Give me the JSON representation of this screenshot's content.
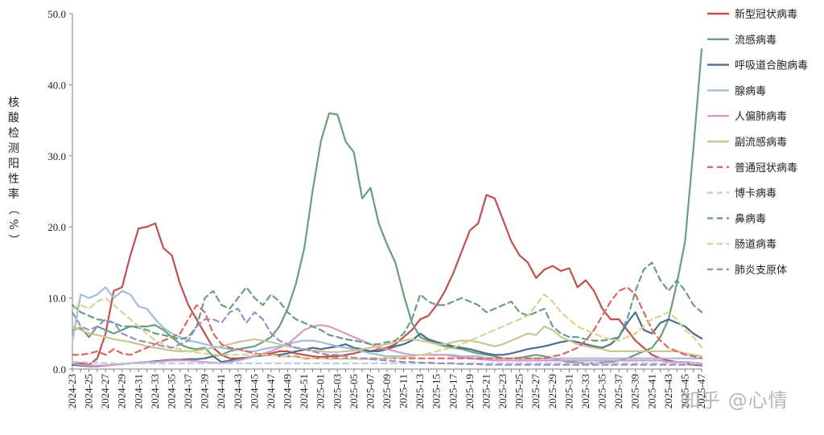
{
  "watermark": "知乎 @心情",
  "chart_data": {
    "type": "line",
    "ylabel": "核酸检测阳性率（%）",
    "ylim": [
      0,
      50
    ],
    "yticks": [
      "0.0",
      "10.0",
      "20.0",
      "30.0",
      "40.0",
      "50.0"
    ],
    "x": [
      "2024-23",
      "2024-24",
      "2024-25",
      "2024-26",
      "2024-27",
      "2024-28",
      "2024-29",
      "2024-30",
      "2024-31",
      "2024-32",
      "2024-33",
      "2024-34",
      "2024-35",
      "2024-36",
      "2024-37",
      "2024-38",
      "2024-39",
      "2024-40",
      "2024-41",
      "2024-42",
      "2024-43",
      "2024-44",
      "2024-45",
      "2024-46",
      "2024-47",
      "2024-48",
      "2024-49",
      "2024-50",
      "2024-51",
      "2024-52",
      "2025-01",
      "2025-02",
      "2025-03",
      "2025-04",
      "2025-05",
      "2025-06",
      "2025-07",
      "2025-08",
      "2025-09",
      "2025-10",
      "2025-11",
      "2025-12",
      "2025-13",
      "2025-14",
      "2025-15",
      "2025-16",
      "2025-17",
      "2025-18",
      "2025-19",
      "2025-20",
      "2025-21",
      "2025-22",
      "2025-23",
      "2025-24",
      "2025-25",
      "2025-26",
      "2025-27",
      "2025-28",
      "2025-29",
      "2025-30",
      "2025-31",
      "2025-32",
      "2025-33",
      "2025-34",
      "2025-35",
      "2025-36",
      "2025-37",
      "2025-38",
      "2025-39",
      "2025-40",
      "2025-41",
      "2025-42",
      "2025-43",
      "2025-44",
      "2025-45",
      "2025-46",
      "2025-47"
    ],
    "xtick_labels": [
      "2024-23",
      "2024-25",
      "2024-27",
      "2024-29",
      "2024-31",
      "2024-33",
      "2024-35",
      "2024-37",
      "2024-39",
      "2024-41",
      "2024-43",
      "2024-45",
      "2024-47",
      "2024-49",
      "2024-51",
      "2025-01",
      "2025-03",
      "2025-05",
      "2025-07",
      "2025-09",
      "2025-11",
      "2025-13",
      "2025-15",
      "2025-17",
      "2025-19",
      "2025-21",
      "2025-23",
      "2025-25",
      "2025-27",
      "2025-29",
      "2025-31",
      "2025-33",
      "2025-35",
      "2025-37",
      "2025-39",
      "2025-41",
      "2025-43",
      "2025-45",
      "2025-47"
    ],
    "legend_position": "right",
    "grid": false,
    "series": [
      {
        "name": "新型冠状病毒",
        "color": "#c0504d",
        "dashed": false,
        "values": [
          1.0,
          0.8,
          0.6,
          1.5,
          5.0,
          11.0,
          11.5,
          16.0,
          19.8,
          20.0,
          20.5,
          17.0,
          16.0,
          12.0,
          9.0,
          7.0,
          5.0,
          3.0,
          2.0,
          1.5,
          1.5,
          1.5,
          1.8,
          2.0,
          2.2,
          2.5,
          2.5,
          2.2,
          2.0,
          1.8,
          1.7,
          1.8,
          1.8,
          2.0,
          2.2,
          2.5,
          2.5,
          2.8,
          3.0,
          3.5,
          4.5,
          5.5,
          7.0,
          7.5,
          9.0,
          11.0,
          13.5,
          16.5,
          19.5,
          20.5,
          24.5,
          24.0,
          21.0,
          18.0,
          16.0,
          15.0,
          12.8,
          14.0,
          14.5,
          13.8,
          14.2,
          11.5,
          12.5,
          11.0,
          8.5,
          7.0,
          7.0,
          5.5,
          4.0,
          3.0,
          2.0,
          1.5,
          1.2,
          1.0,
          0.8,
          0.6,
          0.5
        ]
      },
      {
        "name": "流感病毒",
        "color": "#6b9e7e",
        "dashed": false,
        "values": [
          5.5,
          5.8,
          4.5,
          6.0,
          5.5,
          5.0,
          5.5,
          6.0,
          6.0,
          6.0,
          6.2,
          5.5,
          4.5,
          3.5,
          3.0,
          2.8,
          3.0,
          1.8,
          2.0,
          2.5,
          2.8,
          3.0,
          3.2,
          3.8,
          4.5,
          6.0,
          8.5,
          12.0,
          17.0,
          25.0,
          32.0,
          36.0,
          35.8,
          32.0,
          30.5,
          24.0,
          25.5,
          20.5,
          17.5,
          15.0,
          10.5,
          6.5,
          4.5,
          4.0,
          3.5,
          3.2,
          3.0,
          2.8,
          2.5,
          2.2,
          2.0,
          1.8,
          1.5,
          1.5,
          1.6,
          1.8,
          2.0,
          1.8,
          1.5,
          1.2,
          1.0,
          0.9,
          0.8,
          0.8,
          0.9,
          1.0,
          1.2,
          1.5,
          2.0,
          2.5,
          3.0,
          4.5,
          7.0,
          12.0,
          18.0,
          31.0,
          45.0
        ]
      },
      {
        "name": "呼吸道合胞病毒",
        "color": "#4f6d8a",
        "dashed": false,
        "values": [
          0.6,
          0.5,
          0.4,
          0.4,
          0.5,
          0.6,
          0.7,
          0.8,
          0.9,
          1.0,
          1.1,
          1.2,
          1.3,
          1.3,
          1.4,
          1.4,
          1.5,
          1.8,
          1.0,
          1.2,
          1.5,
          1.6,
          1.8,
          1.9,
          2.0,
          2.0,
          2.2,
          2.5,
          2.7,
          3.0,
          2.8,
          3.0,
          3.2,
          3.5,
          3.0,
          2.8,
          2.5,
          2.5,
          2.8,
          3.2,
          3.5,
          4.0,
          5.0,
          4.2,
          3.8,
          3.5,
          3.2,
          3.0,
          2.8,
          2.5,
          2.2,
          2.0,
          2.0,
          2.2,
          2.5,
          2.8,
          3.0,
          3.2,
          3.5,
          3.8,
          4.0,
          3.8,
          3.5,
          3.2,
          3.0,
          3.5,
          4.5,
          6.5,
          8.0,
          5.5,
          5.0,
          6.5,
          7.0,
          6.5,
          6.0,
          5.0,
          4.3
        ]
      },
      {
        "name": "腺病毒",
        "color": "#9cbfdc",
        "dashed": false,
        "values": [
          4.0,
          10.5,
          10.0,
          10.5,
          11.5,
          10.0,
          11.0,
          10.5,
          8.8,
          8.5,
          7.0,
          5.8,
          5.0,
          4.5,
          4.0,
          3.8,
          3.5,
          3.2,
          3.0,
          2.8,
          2.8,
          2.5,
          2.5,
          2.8,
          3.0,
          3.2,
          3.5,
          3.8,
          4.0,
          4.0,
          3.8,
          3.5,
          3.2,
          3.0,
          2.8,
          2.5,
          2.2,
          2.0,
          1.8,
          1.8,
          1.8,
          1.8,
          2.0,
          2.0,
          2.0,
          2.0,
          2.0,
          1.8,
          1.8,
          1.8,
          1.5,
          1.5,
          1.5,
          1.5,
          1.5,
          1.5,
          1.5,
          1.5,
          1.5,
          1.5,
          1.5,
          1.5,
          1.5,
          1.5,
          1.5,
          1.5,
          1.5,
          1.5,
          1.5,
          1.5,
          1.5,
          1.5,
          1.5,
          1.5,
          1.5,
          1.5,
          1.5
        ]
      },
      {
        "name": "人偏肺病毒",
        "color": "#dd99c6",
        "dashed": false,
        "values": [
          0.8,
          0.6,
          0.5,
          0.5,
          0.5,
          0.6,
          0.7,
          0.8,
          0.9,
          1.0,
          1.0,
          1.1,
          1.2,
          1.2,
          1.2,
          1.1,
          1.0,
          0.9,
          0.8,
          1.0,
          1.2,
          1.5,
          1.8,
          2.2,
          2.5,
          3.0,
          3.5,
          4.5,
          5.5,
          6.0,
          6.2,
          6.0,
          5.5,
          5.0,
          4.5,
          4.0,
          3.5,
          3.0,
          2.8,
          2.5,
          2.2,
          2.0,
          2.0,
          2.0,
          2.0,
          2.0,
          1.8,
          1.6,
          1.5,
          1.4,
          1.3,
          1.2,
          1.2,
          1.2,
          1.2,
          1.2,
          1.2,
          1.2,
          1.2,
          1.2,
          1.2,
          1.2,
          1.2,
          1.2,
          1.2,
          1.2,
          1.2,
          1.2,
          1.2,
          1.2,
          1.2,
          1.2,
          1.0,
          1.0,
          1.0,
          0.9,
          0.8
        ]
      },
      {
        "name": "副流感病毒",
        "color": "#c8c695",
        "dashed": false,
        "values": [
          6.0,
          5.5,
          5.0,
          4.8,
          4.5,
          4.2,
          4.0,
          3.8,
          3.5,
          3.2,
          3.0,
          2.8,
          2.6,
          2.5,
          2.5,
          2.6,
          2.8,
          3.0,
          3.2,
          3.5,
          3.8,
          4.0,
          4.2,
          4.0,
          3.8,
          3.5,
          3.2,
          3.0,
          2.8,
          2.6,
          2.5,
          2.4,
          2.4,
          2.5,
          2.6,
          2.8,
          3.0,
          3.2,
          3.5,
          3.8,
          4.0,
          4.2,
          4.0,
          3.8,
          3.5,
          3.5,
          3.8,
          4.0,
          4.0,
          3.8,
          3.5,
          3.2,
          3.5,
          4.0,
          4.5,
          5.0,
          4.8,
          6.0,
          5.5,
          4.5,
          4.0,
          3.5,
          3.2,
          3.0,
          2.8,
          2.5,
          2.5,
          2.5,
          2.5,
          2.5,
          2.5,
          2.5,
          2.5,
          2.5,
          2.2,
          2.0,
          1.8
        ]
      },
      {
        "name": "普通冠状病毒",
        "color": "#d9695f",
        "dashed": true,
        "values": [
          2.0,
          2.0,
          2.2,
          2.5,
          2.0,
          2.8,
          2.2,
          2.0,
          2.5,
          3.0,
          3.5,
          4.0,
          4.5,
          5.0,
          7.0,
          9.0,
          8.0,
          5.0,
          3.5,
          3.0,
          2.8,
          2.5,
          2.2,
          2.0,
          2.0,
          1.8,
          1.8,
          1.8,
          1.5,
          1.5,
          1.5,
          1.5,
          1.5,
          1.5,
          1.5,
          1.5,
          1.5,
          1.5,
          1.5,
          1.5,
          1.5,
          1.5,
          1.5,
          1.5,
          1.5,
          1.5,
          1.5,
          1.5,
          1.5,
          1.5,
          1.5,
          1.5,
          1.5,
          1.5,
          1.5,
          1.5,
          1.5,
          1.5,
          1.8,
          2.0,
          2.5,
          3.0,
          4.0,
          5.5,
          7.5,
          9.5,
          11.0,
          11.5,
          10.5,
          8.0,
          5.5,
          4.0,
          3.0,
          2.5,
          2.0,
          1.8,
          1.5
        ]
      },
      {
        "name": "博卡病毒",
        "color": "#b7d0e8",
        "dashed": true,
        "values": [
          1.0,
          1.0,
          0.9,
          0.9,
          0.8,
          0.8,
          0.8,
          0.8,
          0.8,
          0.8,
          0.8,
          0.8,
          0.8,
          0.8,
          0.8,
          0.8,
          0.8,
          0.8,
          0.8,
          0.8,
          0.8,
          0.8,
          0.8,
          0.8,
          0.8,
          0.8,
          0.8,
          0.8,
          0.8,
          0.8,
          0.8,
          0.8,
          0.8,
          0.8,
          0.8,
          0.8,
          0.8,
          0.8,
          0.8,
          0.8,
          0.8,
          0.8,
          0.8,
          0.8,
          0.8,
          0.8,
          0.8,
          0.8,
          0.8,
          0.8,
          0.8,
          0.8,
          0.8,
          0.8,
          0.8,
          0.8,
          0.8,
          0.8,
          0.8,
          0.8,
          0.8,
          0.8,
          0.8,
          0.8,
          0.8,
          0.8,
          0.8,
          0.8,
          0.8,
          0.8,
          0.8,
          0.8,
          0.8,
          0.8,
          0.8,
          0.8,
          0.8
        ]
      },
      {
        "name": "鼻病毒",
        "color": "#6b9e7e",
        "dashed": true,
        "values": [
          9.0,
          8.0,
          7.5,
          7.0,
          6.8,
          6.5,
          6.0,
          6.0,
          5.8,
          5.5,
          5.0,
          4.8,
          4.5,
          4.2,
          4.5,
          6.0,
          10.0,
          11.0,
          9.0,
          8.5,
          10.0,
          11.5,
          10.0,
          9.0,
          10.5,
          9.5,
          8.0,
          7.0,
          6.5,
          6.0,
          5.5,
          4.8,
          4.5,
          4.2,
          4.0,
          3.8,
          3.5,
          3.5,
          3.8,
          4.0,
          5.0,
          7.0,
          10.5,
          9.5,
          9.0,
          9.0,
          9.5,
          10.0,
          9.5,
          9.0,
          8.0,
          8.5,
          9.0,
          9.5,
          8.0,
          7.5,
          8.0,
          8.5,
          6.0,
          5.0,
          4.5,
          4.5,
          4.2,
          4.0,
          4.0,
          4.2,
          4.5,
          7.0,
          11.0,
          14.0,
          15.0,
          12.5,
          11.0,
          12.5,
          11.0,
          9.0,
          8.0
        ]
      },
      {
        "name": "肠道病毒",
        "color": "#d8d496",
        "dashed": true,
        "values": [
          8.5,
          9.0,
          8.5,
          9.5,
          10.0,
          9.0,
          8.0,
          7.0,
          6.0,
          5.0,
          4.0,
          3.5,
          3.0,
          2.8,
          2.5,
          2.3,
          2.2,
          2.0,
          2.0,
          2.0,
          2.0,
          2.0,
          2.0,
          2.0,
          2.0,
          1.8,
          1.8,
          1.7,
          1.6,
          1.5,
          1.5,
          1.4,
          1.4,
          1.4,
          1.4,
          1.4,
          1.4,
          1.5,
          1.5,
          1.6,
          1.7,
          1.8,
          2.0,
          2.2,
          2.5,
          2.8,
          3.0,
          3.5,
          4.0,
          4.5,
          5.0,
          5.5,
          6.0,
          6.5,
          7.0,
          7.5,
          9.0,
          10.5,
          9.5,
          8.0,
          7.0,
          6.0,
          5.5,
          5.0,
          4.5,
          4.2,
          4.0,
          4.5,
          5.0,
          6.0,
          7.0,
          7.5,
          8.0,
          7.0,
          5.5,
          4.5,
          3.0
        ]
      },
      {
        "name": "肺炎支原体",
        "color": "#9d8fc4",
        "dashed": true,
        "values": [
          8.0,
          6.0,
          5.5,
          6.0,
          7.0,
          6.5,
          5.0,
          4.5,
          4.0,
          3.8,
          3.5,
          3.2,
          3.0,
          3.5,
          4.0,
          6.0,
          7.0,
          7.0,
          6.5,
          8.0,
          8.5,
          6.5,
          8.0,
          7.0,
          5.0,
          4.0,
          3.5,
          3.0,
          2.8,
          2.5,
          2.2,
          2.0,
          2.0,
          1.8,
          1.6,
          1.5,
          1.4,
          1.3,
          1.2,
          1.1,
          1.0,
          1.0,
          0.9,
          0.9,
          0.8,
          0.8,
          0.8,
          0.7,
          0.7,
          0.7,
          0.6,
          0.6,
          0.6,
          0.6,
          0.6,
          0.6,
          0.6,
          0.6,
          0.6,
          0.6,
          0.6,
          0.6,
          0.6,
          0.6,
          0.6,
          0.6,
          0.6,
          0.6,
          0.6,
          0.6,
          0.6,
          0.6,
          0.6,
          0.6,
          0.6,
          0.6,
          0.6
        ]
      }
    ]
  }
}
